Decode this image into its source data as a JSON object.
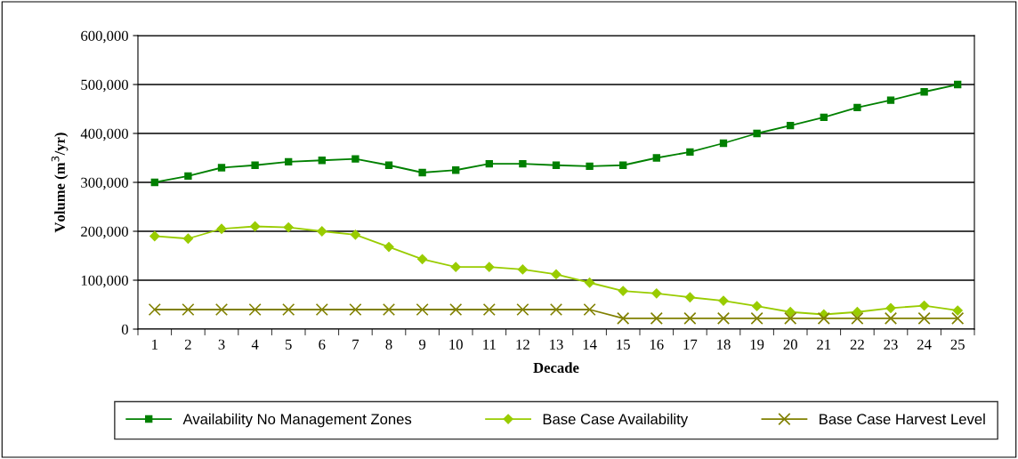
{
  "chart_data": {
    "type": "line",
    "xlabel": "Decade",
    "ylabel": "Volume (m$^{3}$/yr)",
    "categories": [
      "1",
      "2",
      "3",
      "4",
      "5",
      "6",
      "7",
      "8",
      "9",
      "10",
      "11",
      "12",
      "13",
      "14",
      "15",
      "16",
      "17",
      "18",
      "19",
      "20",
      "21",
      "22",
      "23",
      "24",
      "25"
    ],
    "series": [
      {
        "name": "Availability No Management Zones",
        "color": "#008000",
        "marker": "square",
        "values": [
          300000,
          313000,
          330000,
          335000,
          342000,
          345000,
          348000,
          335000,
          320000,
          325000,
          338000,
          338000,
          335000,
          333000,
          335000,
          350000,
          362000,
          380000,
          400000,
          416000,
          433000,
          453000,
          468000,
          485000,
          500000
        ]
      },
      {
        "name": "Base Case Availability",
        "color": "#99cc00",
        "marker": "diamond",
        "values": [
          190000,
          185000,
          205000,
          210000,
          208000,
          200000,
          193000,
          168000,
          143000,
          127000,
          127000,
          122000,
          112000,
          95000,
          78000,
          73000,
          65000,
          58000,
          47000,
          35000,
          30000,
          35000,
          43000,
          48000,
          38000
        ]
      },
      {
        "name": "Base Case Harvest Level",
        "color": "#808000",
        "marker": "cross",
        "values": [
          40000,
          40000,
          40000,
          40000,
          40000,
          40000,
          40000,
          40000,
          40000,
          40000,
          40000,
          40000,
          40000,
          40000,
          22000,
          22000,
          22000,
          22000,
          22000,
          22000,
          22000,
          22000,
          22000,
          22000,
          22000
        ]
      }
    ],
    "ylim": [
      0,
      600000
    ],
    "yticks": [
      {
        "value": 0,
        "label": "0"
      },
      {
        "value": 100000,
        "label": "100,000"
      },
      {
        "value": 200000,
        "label": "200,000"
      },
      {
        "value": 300000,
        "label": "300,000"
      },
      {
        "value": 400000,
        "label": "400,000"
      },
      {
        "value": 500000,
        "label": "500,000"
      },
      {
        "value": 600000,
        "label": "600,000"
      }
    ],
    "grid": "y",
    "legend": "bottom",
    "line_style": "solid"
  }
}
